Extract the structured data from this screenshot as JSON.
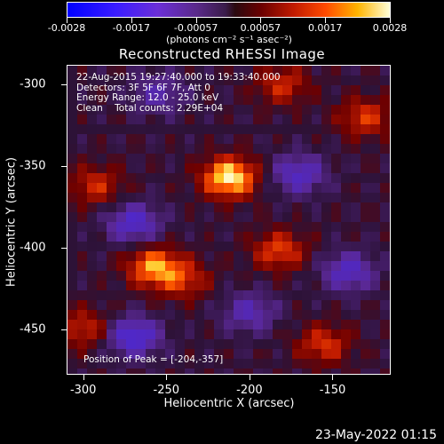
{
  "colorbar": {
    "tick_labels": [
      "-0.0028",
      "-0.0017",
      "-0.00057",
      "0.00057",
      "0.0017",
      "0.0028"
    ],
    "units": "(photons cm⁻² s⁻¹ asec⁻²)",
    "range": [
      -0.0028,
      0.0028
    ]
  },
  "chart_data": {
    "type": "heatmap",
    "title": "Reconstructed RHESSI Image",
    "xlabel": "Heliocentric X (arcsec)",
    "ylabel": "Heliocentric Y (arcsec)",
    "xlim": [
      -310,
      -115
    ],
    "ylim": [
      -478,
      -288
    ],
    "x_ticks": [
      "-300",
      "-250",
      "-200",
      "-150"
    ],
    "y_ticks": [
      "-300",
      "-350",
      "-400",
      "-450"
    ],
    "info_lines": [
      "22-Aug-2015 19:27:40.000 to 19:33:40.000",
      "Detectors: 3F 5F 6F 7F, Att 0",
      "Energy Range: 12.0 - 25.0 keV",
      "Clean    Total counts: 2.29E+04"
    ],
    "peak_text": "Position of Peak = [-204,-357]",
    "peak_position": [
      -204,
      -357
    ],
    "sources": [
      {
        "x": -212,
        "y": -357,
        "intensity": 1.0
      },
      {
        "x": -258,
        "y": -412,
        "intensity": 0.75
      },
      {
        "x": -240,
        "y": -420,
        "intensity": 0.45
      },
      {
        "x": -293,
        "y": -362,
        "intensity": 0.45
      },
      {
        "x": -182,
        "y": -402,
        "intensity": 0.55
      },
      {
        "x": -130,
        "y": -320,
        "intensity": 0.5
      },
      {
        "x": -180,
        "y": -300,
        "intensity": 0.45
      },
      {
        "x": -155,
        "y": -460,
        "intensity": 0.5
      },
      {
        "x": -300,
        "y": -450,
        "intensity": 0.45
      }
    ],
    "negative_regions": [
      {
        "x": -270,
        "y": -385,
        "intensity": -0.6
      },
      {
        "x": -270,
        "y": -455,
        "intensity": -0.7
      },
      {
        "x": -170,
        "y": -355,
        "intensity": -0.55
      },
      {
        "x": -140,
        "y": -415,
        "intensity": -0.55
      },
      {
        "x": -200,
        "y": -440,
        "intensity": -0.45
      },
      {
        "x": -255,
        "y": -305,
        "intensity": -0.4
      }
    ]
  },
  "footer": {
    "timestamp": "23-May-2022 01:15"
  }
}
